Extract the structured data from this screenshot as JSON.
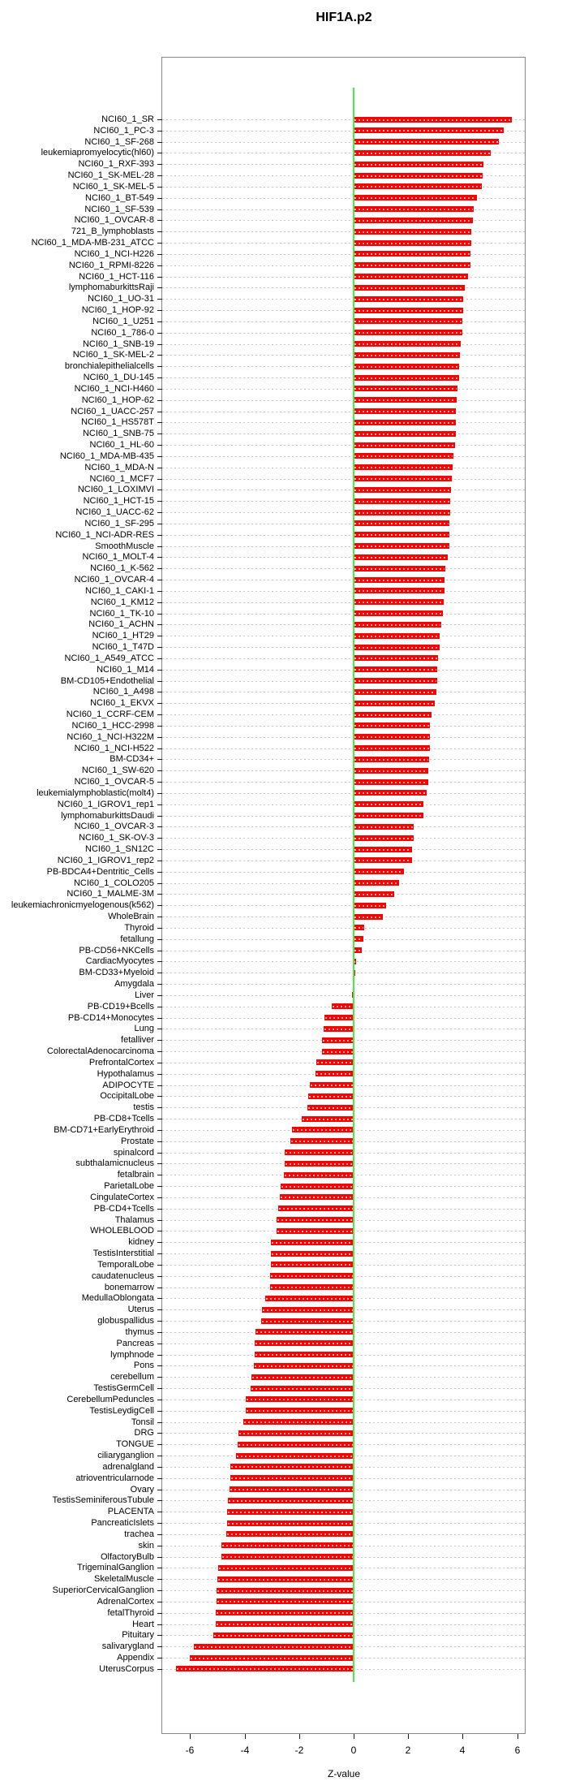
{
  "title": "HIF1A.p2",
  "chart_data": {
    "type": "bar",
    "orientation": "horizontal",
    "title": "HIF1A.p2",
    "xlabel": "Z-value",
    "xlim": [
      -7.0,
      6.3
    ],
    "xticks": [
      -6,
      -4,
      -2,
      0,
      2,
      4,
      6
    ],
    "grid": "dotted horizontal line per category",
    "legend": "none",
    "bar_color": "#ff0000",
    "zero_line_color": "#44ee44",
    "categories": [
      "NCI60_1_SR",
      "NCI60_1_PC-3",
      "NCI60_1_SF-268",
      "leukemiapromyelocytic(hl60)",
      "NCI60_1_RXF-393",
      "NCI60_1_SK-MEL-28",
      "NCI60_1_SK-MEL-5",
      "NCI60_1_BT-549",
      "NCI60_1_SF-539",
      "NCI60_1_OVCAR-8",
      "721_B_lymphoblasts",
      "NCI60_1_MDA-MB-231_ATCC",
      "NCI60_1_NCI-H226",
      "NCI60_1_RPMI-8226",
      "NCI60_1_HCT-116",
      "lymphomaburkittsRaji",
      "NCI60_1_UO-31",
      "NCI60_1_HOP-92",
      "NCI60_1_U251",
      "NCI60_1_786-0",
      "NCI60_1_SNB-19",
      "NCI60_1_SK-MEL-2",
      "bronchialepithelialcells",
      "NCI60_1_DU-145",
      "NCI60_1_NCI-H460",
      "NCI60_1_HOP-62",
      "NCI60_1_UACC-257",
      "NCI60_1_HS578T",
      "NCI60_1_SNB-75",
      "NCI60_1_HL-60",
      "NCI60_1_MDA-MB-435",
      "NCI60_1_MDA-N",
      "NCI60_1_MCF7",
      "NCI60_1_LOXIMVI",
      "NCI60_1_HCT-15",
      "NCI60_1_UACC-62",
      "NCI60_1_SF-295",
      "NCI60_1_NCI-ADR-RES",
      "SmoothMuscle",
      "NCI60_1_MOLT-4",
      "NCI60_1_K-562",
      "NCI60_1_OVCAR-4",
      "NCI60_1_CAKI-1",
      "NCI60_1_KM12",
      "NCI60_1_TK-10",
      "NCI60_1_ACHN",
      "NCI60_1_HT29",
      "NCI60_1_T47D",
      "NCI60_1_A549_ATCC",
      "NCI60_1_M14",
      "BM-CD105+Endothelial",
      "NCI60_1_A498",
      "NCI60_1_EKVX",
      "NCI60_1_CCRF-CEM",
      "NCI60_1_HCC-2998",
      "NCI60_1_NCI-H322M",
      "NCI60_1_NCI-H522",
      "BM-CD34+",
      "NCI60_1_SW-620",
      "NCI60_1_OVCAR-5",
      "leukemialymphoblastic(molt4)",
      "NCI60_1_IGROV1_rep1",
      "lymphomaburkittsDaudi",
      "NCI60_1_OVCAR-3",
      "NCI60_1_SK-OV-3",
      "NCI60_1_SN12C",
      "NCI60_1_IGROV1_rep2",
      "PB-BDCA4+Dentritic_Cells",
      "NCI60_1_COLO205",
      "NCI60_1_MALME-3M",
      "leukemiachronicmyelogenous(k562)",
      "WholeBrain",
      "Thyroid",
      "fetallung",
      "PB-CD56+NKCells",
      "CardiacMyocytes",
      "BM-CD33+Myeloid",
      "Amygdala",
      "Liver",
      "PB-CD19+Bcells",
      "PB-CD14+Monocytes",
      "Lung",
      "fetalliver",
      "ColorectalAdenocarcinoma",
      "PrefrontalCortex",
      "Hypothalamus",
      "ADIPOCYTE",
      "OccipitalLobe",
      "testis",
      "PB-CD8+Tcells",
      "BM-CD71+EarlyErythroid",
      "Prostate",
      "spinalcord",
      "subthalamicnucleus",
      "fetalbrain",
      "ParietalLobe",
      "CingulateCortex",
      "PB-CD4+Tcells",
      "Thalamus",
      "WHOLEBLOOD",
      "kidney",
      "TestisInterstitial",
      "TemporalLobe",
      "caudatenucleus",
      "bonemarrow",
      "MedullaOblongata",
      "Uterus",
      "globuspallidus",
      "thymus",
      "Pancreas",
      "lymphnode",
      "Pons",
      "cerebellum",
      "TestisGermCell",
      "CerebellumPeduncles",
      "TestisLeydigCell",
      "Tonsil",
      "DRG",
      "TONGUE",
      "ciliaryganglion",
      "adrenalgland",
      "atrioventricularnode",
      "Ovary",
      "TestisSeminiferousTubule",
      "PLACENTA",
      "PancreaticIslets",
      "trachea",
      "skin",
      "OlfactoryBulb",
      "TrigeminalGanglion",
      "SkeletalMuscle",
      "SuperiorCervicalGanglion",
      "AdrenalCortex",
      "fetalThyroid",
      "Heart",
      "Pituitary",
      "salivarygland",
      "Appendix",
      "UterusCorpus"
    ],
    "values": [
      5.8,
      5.5,
      5.33,
      5.02,
      4.76,
      4.72,
      4.7,
      4.51,
      4.4,
      4.37,
      4.33,
      4.32,
      4.3,
      4.28,
      4.19,
      4.08,
      4.03,
      4.01,
      3.99,
      3.98,
      3.93,
      3.9,
      3.87,
      3.86,
      3.81,
      3.78,
      3.76,
      3.75,
      3.74,
      3.71,
      3.67,
      3.63,
      3.61,
      3.57,
      3.55,
      3.53,
      3.52,
      3.51,
      3.5,
      3.46,
      3.35,
      3.33,
      3.32,
      3.3,
      3.26,
      3.2,
      3.16,
      3.15,
      3.11,
      3.08,
      3.07,
      3.03,
      2.97,
      2.87,
      2.81,
      2.8,
      2.79,
      2.76,
      2.75,
      2.73,
      2.69,
      2.56,
      2.55,
      2.2,
      2.19,
      2.15,
      2.14,
      1.85,
      1.66,
      1.5,
      1.18,
      1.07,
      0.38,
      0.37,
      0.29,
      0.09,
      0.07,
      0.04,
      -0.05,
      -0.79,
      -1.06,
      -1.09,
      -1.15,
      -1.17,
      -1.37,
      -1.41,
      -1.6,
      -1.67,
      -1.69,
      -1.9,
      -2.26,
      -2.31,
      -2.53,
      -2.54,
      -2.56,
      -2.69,
      -2.7,
      -2.78,
      -2.82,
      -2.83,
      -3.04,
      -3.05,
      -3.05,
      -3.06,
      -3.07,
      -3.24,
      -3.37,
      -3.4,
      -3.6,
      -3.63,
      -3.64,
      -3.67,
      -3.75,
      -3.77,
      -3.95,
      -3.96,
      -4.05,
      -4.22,
      -4.25,
      -4.33,
      -4.51,
      -4.53,
      -4.56,
      -4.62,
      -4.64,
      -4.64,
      -4.66,
      -4.84,
      -4.86,
      -4.96,
      -4.99,
      -5.02,
      -5.04,
      -5.06,
      -5.07,
      -5.14,
      -5.85,
      -6.0,
      -6.51
    ]
  }
}
